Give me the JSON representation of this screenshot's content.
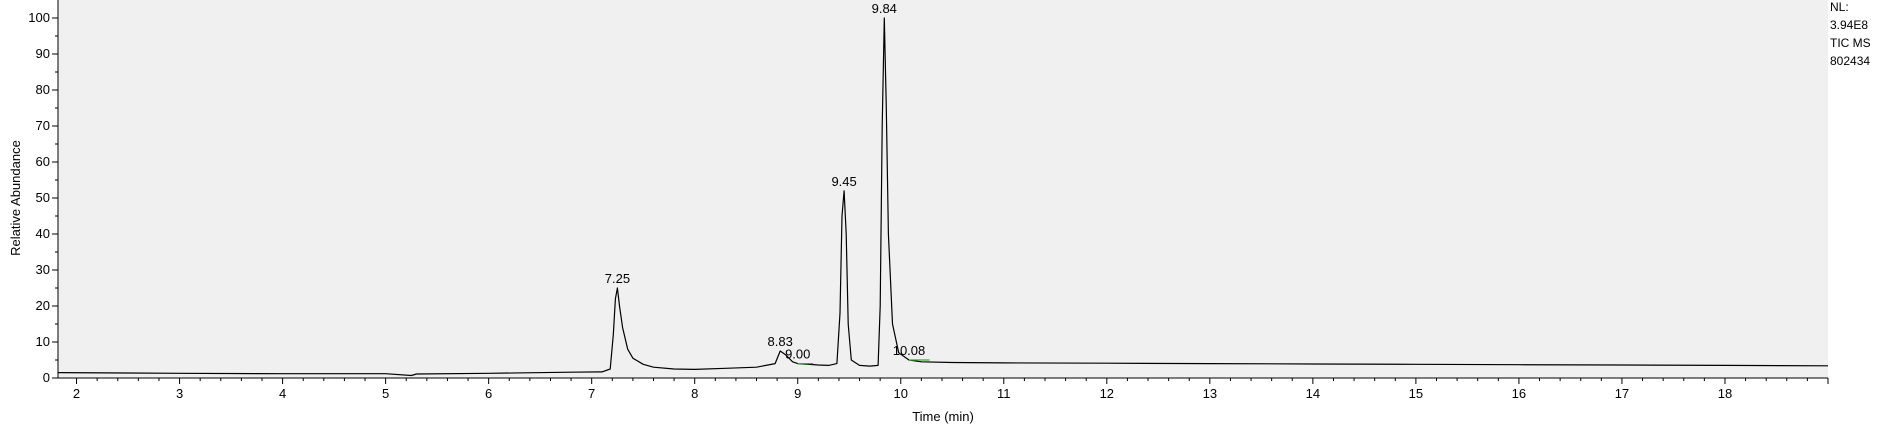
{
  "chart_data": {
    "type": "line",
    "xlabel": "Time (min)",
    "ylabel": "Relative Abundance",
    "xlim": [
      1.82,
      19.0
    ],
    "ylim": [
      0,
      100
    ],
    "xticks": [
      2,
      3,
      4,
      5,
      6,
      7,
      8,
      9,
      10,
      11,
      12,
      13,
      14,
      15,
      16,
      17,
      18
    ],
    "yticks": [
      0,
      10,
      20,
      30,
      40,
      50,
      60,
      70,
      80,
      90,
      100
    ],
    "grid": false,
    "colors": {
      "trace": "#000000",
      "plot_bg": "#f0f0f0",
      "baseline_marker": "#33aa33"
    },
    "series": [
      {
        "x": [
          1.82,
          2.5,
          3.0,
          4.0,
          5.0,
          5.25,
          5.3,
          6.0,
          6.8,
          7.1,
          7.18,
          7.21,
          7.23,
          7.25,
          7.27,
          7.3,
          7.35,
          7.4,
          7.5,
          7.6,
          7.8,
          8.0,
          8.3,
          8.6,
          8.78,
          8.83,
          8.88,
          8.95,
          9.0,
          9.1,
          9.2,
          9.3,
          9.38,
          9.41,
          9.43,
          9.45,
          9.47,
          9.49,
          9.52,
          9.6,
          9.7,
          9.78,
          9.8,
          9.82,
          9.84,
          9.86,
          9.88,
          9.92,
          9.98,
          10.08,
          10.2,
          10.5,
          11.0,
          12.0,
          13.0,
          14.0,
          15.0,
          16.0,
          17.0,
          18.0,
          19.0
        ],
        "y": [
          1.5,
          1.4,
          1.3,
          1.2,
          1.2,
          0.7,
          1.1,
          1.3,
          1.6,
          1.7,
          2.5,
          12.0,
          22.0,
          25.0,
          20.0,
          14.0,
          8.0,
          5.5,
          3.8,
          3.0,
          2.5,
          2.4,
          2.7,
          3.0,
          4.0,
          7.5,
          6.5,
          4.5,
          4.0,
          3.8,
          3.6,
          3.5,
          4.0,
          18.0,
          45.0,
          52.0,
          40.0,
          15.0,
          5.0,
          3.5,
          3.3,
          3.5,
          20.0,
          70.0,
          100.0,
          75.0,
          40.0,
          15.0,
          7.0,
          5.0,
          4.5,
          4.3,
          4.2,
          4.1,
          4.0,
          3.9,
          3.8,
          3.7,
          3.6,
          3.5,
          3.4
        ]
      }
    ],
    "annotations": [
      {
        "text": "7.25",
        "x": 7.25,
        "y": 25.0
      },
      {
        "text": "8.83",
        "x": 8.83,
        "y": 7.5
      },
      {
        "text": "9.00",
        "x": 9.0,
        "y": 4.0
      },
      {
        "text": "9.45",
        "x": 9.45,
        "y": 52.0
      },
      {
        "text": "9.84",
        "x": 9.84,
        "y": 100.0
      },
      {
        "text": "10.08",
        "x": 10.08,
        "y": 5.0
      }
    ],
    "info_box": [
      "NL:",
      "3.94E8",
      "TIC  MS",
      "802434"
    ]
  }
}
